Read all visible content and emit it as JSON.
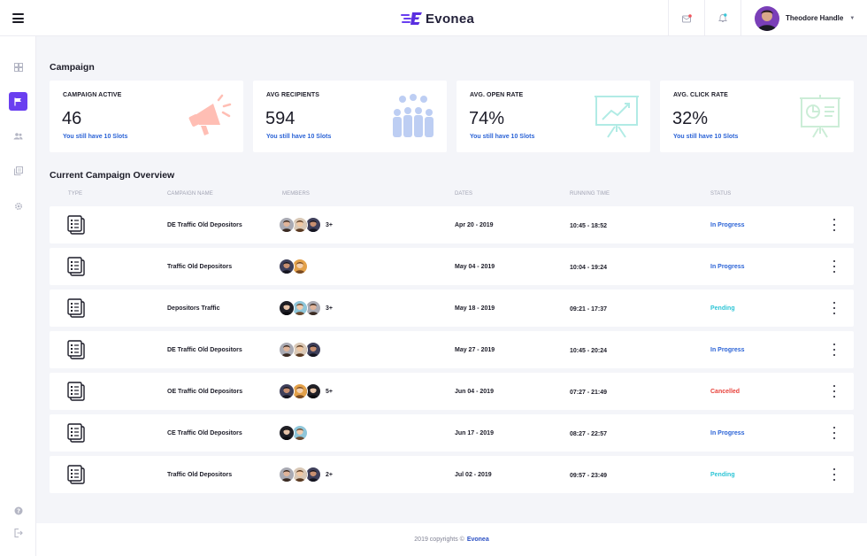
{
  "brand": {
    "name": "Evonea"
  },
  "user": {
    "name": "Theodore Handle"
  },
  "sidebar": {
    "items": [
      {
        "icon": "dashboard-icon",
        "active": false
      },
      {
        "icon": "flag-icon",
        "active": true
      },
      {
        "icon": "users-icon",
        "active": false
      },
      {
        "icon": "documents-icon",
        "active": false
      },
      {
        "icon": "settings-icon",
        "active": false
      }
    ],
    "bottom": [
      {
        "icon": "help-icon"
      },
      {
        "icon": "logout-icon"
      }
    ]
  },
  "campaign_section": {
    "title": "Campaign"
  },
  "stats": [
    {
      "label": "CAMPAIGN ACTIVE",
      "value": "46",
      "sub": "You still have 10 Slots",
      "icon": "megaphone-icon",
      "icon_color": "#ff7b6b"
    },
    {
      "label": "AVG RECIPIENTS",
      "value": "594",
      "sub": "You still have 10 Slots",
      "icon": "crowd-icon",
      "icon_color": "#5f8be6"
    },
    {
      "label": "AVG. OPEN RATE",
      "value": "74%",
      "sub": "You still have 10 Slots",
      "icon": "presentation-chart-icon",
      "icon_color": "#54d5c6"
    },
    {
      "label": "AVG. CLICK RATE",
      "value": "32%",
      "sub": "You still have 10 Slots",
      "icon": "presentation-pie-icon",
      "icon_color": "#8fd9a8"
    }
  ],
  "overview": {
    "title": "Current Campaign Overview",
    "columns": {
      "type": "TYPE",
      "name": "CAMPAIGN NAME",
      "members": "MEMBERS",
      "dates": "DATES",
      "running": "RUNNING TIME",
      "status": "STATUS"
    },
    "rows": [
      {
        "name": "DE Traffic Old Depositors",
        "avatars": 3,
        "more": "3+",
        "date": "Apr 20 - 2019",
        "time": "10:45 - 18:52",
        "status": "In Progress",
        "status_color": "#2b63d6"
      },
      {
        "name": "Traffic Old Depositors",
        "avatars": 2,
        "more": "",
        "date": "May 04 - 2019",
        "time": "10:04 - 19:24",
        "status": "In Progress",
        "status_color": "#2b63d6"
      },
      {
        "name": "Depositors Traffic",
        "avatars": 3,
        "more": "3+",
        "date": "May 18 - 2019",
        "time": "09:21 - 17:37",
        "status": "Pending",
        "status_color": "#2ec5d6"
      },
      {
        "name": "DE Traffic Old Depositors",
        "avatars": 3,
        "more": "",
        "date": "May 27 - 2019",
        "time": "10:45 - 20:24",
        "status": "In Progress",
        "status_color": "#2b63d6"
      },
      {
        "name": "OE Traffic Old Depositors",
        "avatars": 3,
        "more": "5+",
        "date": "Jun 04 - 2019",
        "time": "07:27 - 21:49",
        "status": "Cancelled",
        "status_color": "#e8433c"
      },
      {
        "name": "CE Traffic Old Depositors",
        "avatars": 2,
        "more": "",
        "date": "Jun 17 - 2019",
        "time": "08:27 - 22:57",
        "status": "In Progress",
        "status_color": "#2b63d6"
      },
      {
        "name": "Traffic Old Depositors",
        "avatars": 3,
        "more": "2+",
        "date": "Jul 02 - 2019",
        "time": "09:57 - 23:49",
        "status": "Pending",
        "status_color": "#2ec5d6"
      }
    ]
  },
  "footer": {
    "text": "2019 copyrights ©",
    "brand": "Evonea"
  }
}
